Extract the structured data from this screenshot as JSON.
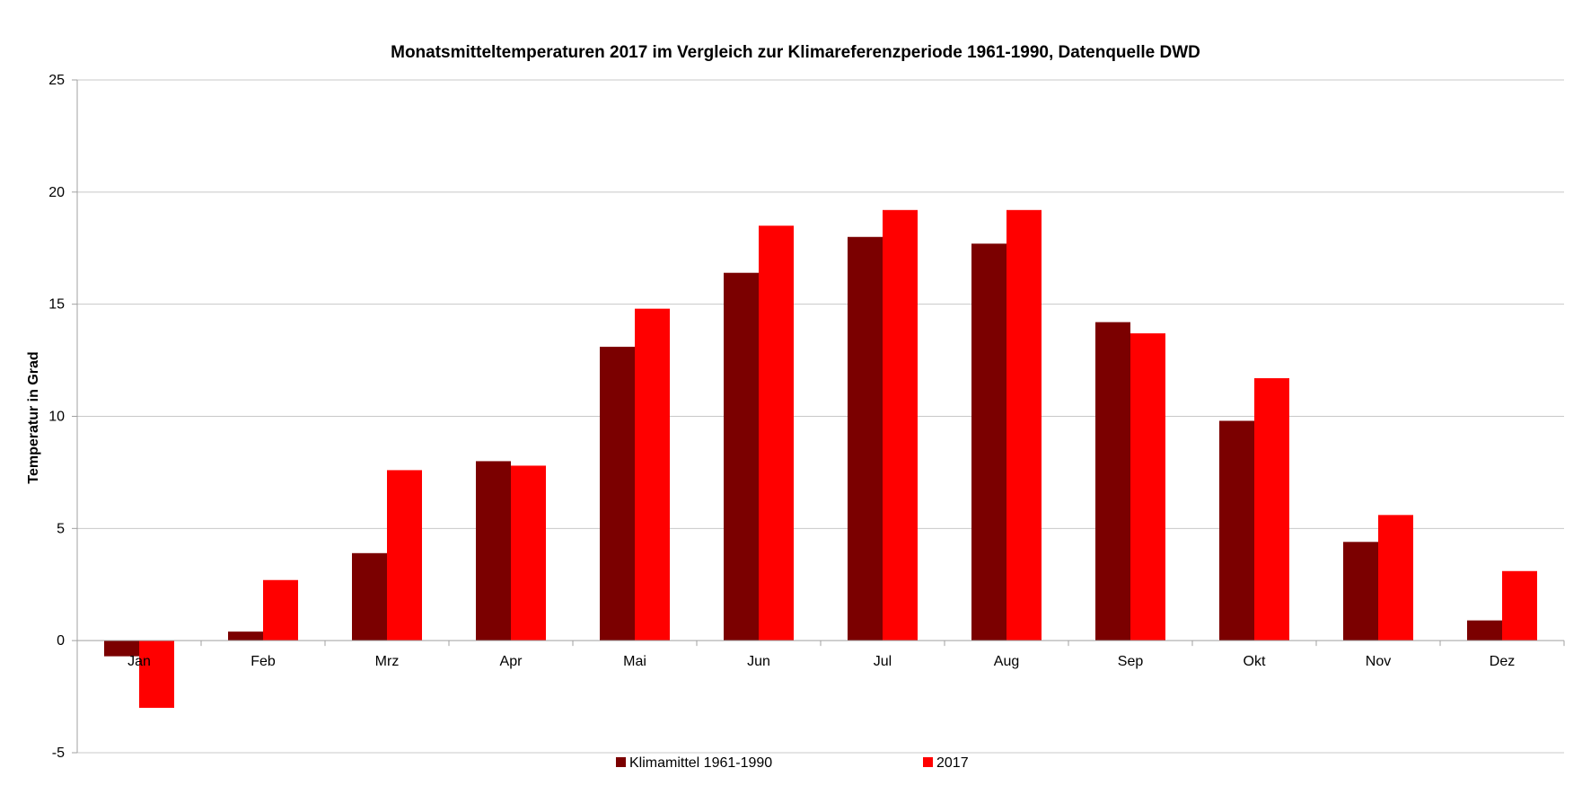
{
  "chart_data": {
    "type": "bar",
    "title": "Monatsmitteltemperaturen 2017 im Vergleich zur Klimareferenzperiode 1961-1990, Datenquelle DWD",
    "xlabel": "",
    "ylabel": "Temperatur in Grad",
    "ylim": [
      -5,
      25
    ],
    "yticks": [
      -5,
      0,
      5,
      10,
      15,
      20,
      25
    ],
    "grid": true,
    "legend_position": "bottom",
    "categories": [
      "Jan",
      "Feb",
      "Mrz",
      "Apr",
      "Mai",
      "Jun",
      "Jul",
      "Aug",
      "Sep",
      "Okt",
      "Nov",
      "Dez"
    ],
    "series": [
      {
        "name": "Klimamittel 1961-1990",
        "color": "#7b0000",
        "values": [
          -0.7,
          0.4,
          3.9,
          8.0,
          13.1,
          16.4,
          18.0,
          17.7,
          14.2,
          9.8,
          4.4,
          0.9
        ]
      },
      {
        "name": "2017",
        "color": "#ff0000",
        "values": [
          -3.0,
          2.7,
          7.6,
          7.8,
          14.8,
          18.5,
          19.2,
          19.2,
          13.7,
          11.7,
          5.6,
          3.1
        ]
      }
    ]
  }
}
